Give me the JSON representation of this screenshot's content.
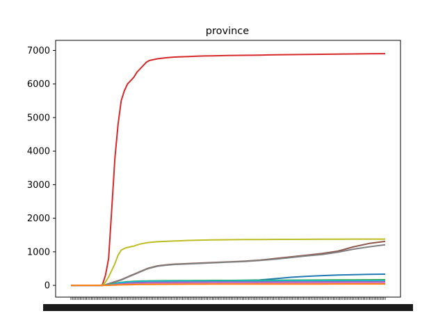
{
  "chart_data": {
    "type": "line",
    "title": "province",
    "xlabel": "",
    "ylabel": "",
    "ylim": [
      -350,
      7300
    ],
    "yticks": [
      0,
      1000,
      2000,
      3000,
      4000,
      5000,
      6000,
      7000
    ],
    "grid": false,
    "legend": "none",
    "x": [
      0,
      10,
      18,
      20,
      22,
      24,
      26,
      28,
      30,
      32,
      34,
      36,
      38,
      40,
      42,
      44,
      46,
      48,
      50,
      55,
      60,
      65,
      70,
      75,
      80,
      85,
      90,
      100,
      110,
      120,
      130,
      140,
      150,
      160,
      170,
      180,
      190,
      200
    ],
    "series": [
      {
        "color": "#d62728",
        "values": [
          0,
          0,
          0,
          10,
          300,
          800,
          2300,
          3800,
          4800,
          5500,
          5800,
          6000,
          6100,
          6200,
          6350,
          6450,
          6550,
          6650,
          6700,
          6750,
          6780,
          6800,
          6810,
          6820,
          6830,
          6835,
          6840,
          6850,
          6855,
          6860,
          6870,
          6875,
          6880,
          6885,
          6890,
          6895,
          6900,
          6905
        ]
      },
      {
        "color": "#bcbd22",
        "values": [
          0,
          0,
          0,
          0,
          100,
          250,
          450,
          650,
          900,
          1050,
          1100,
          1130,
          1150,
          1170,
          1200,
          1230,
          1250,
          1270,
          1280,
          1300,
          1310,
          1320,
          1330,
          1340,
          1345,
          1350,
          1355,
          1360,
          1365,
          1365,
          1370,
          1370,
          1372,
          1374,
          1376,
          1378,
          1380,
          1380
        ]
      },
      {
        "color": "#8c564b",
        "values": [
          0,
          0,
          0,
          0,
          20,
          50,
          80,
          110,
          140,
          170,
          210,
          250,
          290,
          330,
          370,
          410,
          450,
          490,
          520,
          580,
          610,
          630,
          640,
          650,
          660,
          670,
          680,
          700,
          720,
          750,
          800,
          850,
          900,
          950,
          1020,
          1150,
          1250,
          1310
        ]
      },
      {
        "color": "#7f7f7f",
        "values": [
          0,
          0,
          0,
          0,
          15,
          40,
          70,
          100,
          130,
          160,
          200,
          240,
          280,
          320,
          360,
          400,
          440,
          480,
          510,
          570,
          600,
          620,
          630,
          640,
          650,
          660,
          670,
          690,
          710,
          740,
          780,
          830,
          880,
          920,
          990,
          1080,
          1150,
          1210
        ]
      },
      {
        "color": "#1f77b4",
        "values": [
          0,
          0,
          0,
          0,
          5,
          10,
          20,
          30,
          40,
          50,
          60,
          70,
          80,
          90,
          95,
          100,
          105,
          110,
          115,
          120,
          125,
          128,
          130,
          132,
          135,
          138,
          140,
          145,
          150,
          160,
          200,
          240,
          270,
          290,
          310,
          320,
          330,
          335
        ]
      },
      {
        "color": "#2ca02c",
        "values": [
          0,
          0,
          0,
          0,
          10,
          20,
          40,
          60,
          80,
          90,
          100,
          110,
          115,
          120,
          125,
          128,
          130,
          132,
          135,
          138,
          140,
          142,
          143,
          144,
          145,
          146,
          147,
          148,
          150,
          152,
          154,
          156,
          158,
          160,
          162,
          164,
          166,
          168
        ]
      },
      {
        "color": "#17becf",
        "values": [
          0,
          0,
          0,
          0,
          5,
          15,
          30,
          50,
          70,
          85,
          95,
          100,
          105,
          110,
          115,
          118,
          120,
          122,
          124,
          126,
          128,
          130,
          131,
          132,
          133,
          134,
          135,
          136,
          137,
          138,
          139,
          140,
          141,
          142,
          143,
          144,
          145,
          146
        ]
      },
      {
        "color": "#9467bd",
        "values": [
          0,
          0,
          0,
          0,
          3,
          8,
          15,
          25,
          35,
          45,
          55,
          65,
          70,
          75,
          80,
          82,
          85,
          87,
          88,
          90,
          92,
          94,
          95,
          96,
          97,
          98,
          99,
          100,
          101,
          102,
          103,
          104,
          105,
          106,
          107,
          108,
          109,
          110
        ]
      },
      {
        "color": "#e377c2",
        "values": [
          0,
          0,
          0,
          0,
          2,
          5,
          10,
          15,
          20,
          25,
          30,
          35,
          38,
          40,
          42,
          44,
          46,
          48,
          50,
          52,
          54,
          56,
          57,
          58,
          59,
          60,
          61,
          62,
          63,
          64,
          65,
          66,
          67,
          68,
          69,
          70,
          71,
          72
        ]
      },
      {
        "color": "#ff7f0e",
        "values": [
          0,
          0,
          0,
          0,
          1,
          3,
          6,
          9,
          12,
          15,
          18,
          20,
          22,
          24,
          26,
          27,
          28,
          29,
          30,
          31,
          32,
          33,
          34,
          35,
          36,
          36,
          37,
          37,
          38,
          38,
          39,
          39,
          40,
          40,
          41,
          41,
          42,
          42
        ]
      }
    ]
  }
}
